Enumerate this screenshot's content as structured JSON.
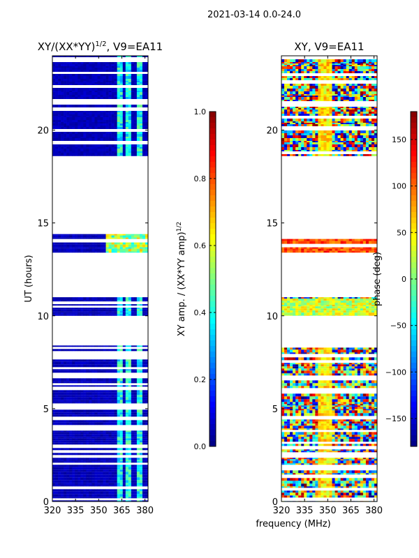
{
  "suptitle": "2021-03-14 0.0-24.0",
  "chart_data": [
    {
      "type": "heatmap",
      "title": "XY/(XX*YY)^{1/2}, V9=EA11",
      "title_main": "XY/(XX*YY)",
      "title_sup": "1/2",
      "title_tail": ", V9=EA11",
      "xlabel": "",
      "ylabel": "UT (hours)",
      "xlim": [
        320,
        382
      ],
      "ylim": [
        0,
        24
      ],
      "xticks": [
        "320",
        "335",
        "350",
        "365",
        "380"
      ],
      "yticks": [
        "0",
        "5",
        "10",
        "15",
        "20"
      ],
      "colormap": "jet",
      "colorbar": {
        "label": "XY amp. / (XX*YY amp)^{1/2}",
        "label_main": "XY amp. / (XX*YY amp)",
        "label_sup": "1/2",
        "range": [
          0.0,
          1.0
        ],
        "ticks": [
          "0.0",
          "0.2",
          "0.4",
          "0.6",
          "0.8",
          "1.0"
        ]
      },
      "data_bands_ut_hours": [
        [
          0.0,
          8.4
        ],
        [
          10.0,
          11.0
        ],
        [
          13.4,
          14.4
        ],
        [
          18.6,
          24.0
        ]
      ],
      "bright_channels_mhz": [
        [
          362,
          366
        ],
        [
          368,
          371
        ],
        [
          374,
          378
        ]
      ]
    },
    {
      "type": "heatmap",
      "title": "XY, V9=EA11",
      "xlabel": "frequency (MHz)",
      "ylabel": "",
      "xlim": [
        320,
        382
      ],
      "ylim": [
        0,
        24
      ],
      "xticks": [
        "320",
        "335",
        "350",
        "365",
        "380"
      ],
      "yticks": [
        "0",
        "5",
        "10",
        "15",
        "20"
      ],
      "colormap": "jet",
      "colorbar": {
        "label": "phase (deg)",
        "range": [
          -180,
          180
        ],
        "ticks": [
          "−150",
          "−100",
          "−50",
          "0",
          "50",
          "100",
          "150"
        ]
      },
      "data_bands_ut_hours": [
        [
          0.0,
          8.4
        ],
        [
          10.0,
          11.0
        ],
        [
          13.4,
          14.4
        ],
        [
          18.6,
          24.0
        ]
      ]
    }
  ]
}
